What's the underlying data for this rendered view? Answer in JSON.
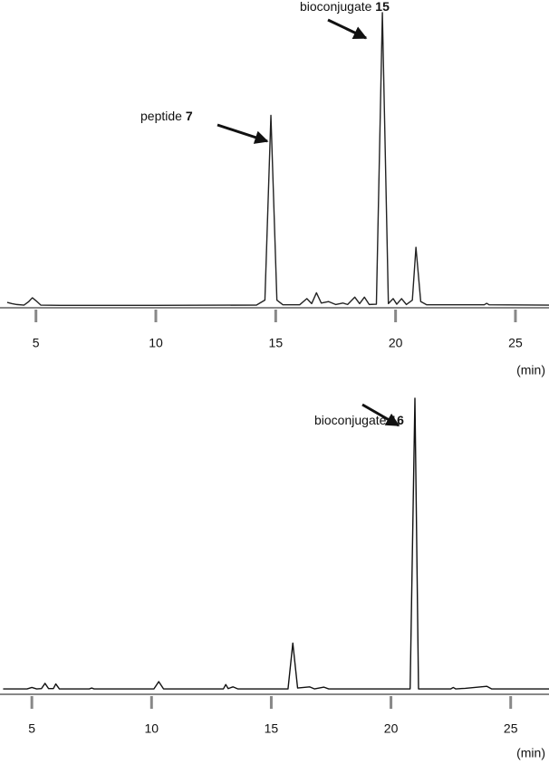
{
  "chart_data": [
    {
      "type": "line",
      "xlabel": "(min)",
      "xlim": [
        3.5,
        26.4
      ],
      "ylim": [
        0,
        100
      ],
      "xticks": [
        5,
        10,
        15,
        20,
        25
      ],
      "x": [
        3.8,
        4.0,
        4.2,
        4.5,
        4.7,
        4.85,
        5.0,
        5.2,
        6,
        10,
        14.2,
        14.55,
        14.8,
        15.05,
        15.3,
        16.0,
        16.3,
        16.5,
        16.7,
        16.9,
        17.2,
        17.5,
        17.8,
        18.0,
        18.3,
        18.5,
        18.7,
        18.9,
        19.2,
        19.45,
        19.7,
        19.9,
        20.05,
        20.25,
        20.45,
        20.7,
        20.85,
        21.05,
        21.3,
        23.7,
        23.8,
        23.9,
        26.4
      ],
      "series": [
        {
          "color": "#222222",
          "values": [
            1.2,
            0.8,
            0.5,
            0.3,
            1.5,
            2.8,
            1.8,
            0.3,
            0.2,
            0.2,
            0.3,
            2,
            65,
            2,
            0.4,
            0.4,
            2.5,
            0.8,
            4.5,
            1,
            1.5,
            0.5,
            1,
            0.5,
            3,
            0.8,
            3,
            0.5,
            0.6,
            100,
            0.8,
            2.5,
            0.6,
            2.5,
            0.5,
            2,
            20,
            1.5,
            0.4,
            0.4,
            0.9,
            0.4,
            0.3
          ]
        }
      ],
      "annotations": [
        {
          "text": "bioconjugate",
          "number": "15"
        },
        {
          "text": "peptide",
          "number": "7"
        }
      ]
    },
    {
      "type": "line",
      "xlabel": "(min)",
      "xlim": [
        3.67,
        26.6
      ],
      "ylim": [
        0,
        100
      ],
      "xticks": [
        5,
        10,
        15,
        20,
        25
      ],
      "x": [
        3.8,
        4.8,
        5.0,
        5.2,
        5.4,
        5.55,
        5.7,
        5.9,
        6.0,
        6.15,
        7.4,
        7.5,
        7.6,
        10.1,
        10.3,
        10.5,
        13.0,
        13.1,
        13.2,
        13.4,
        13.6,
        15.7,
        15.9,
        16.1,
        16.6,
        16.8,
        17.2,
        17.4,
        20.8,
        21.0,
        21.15,
        22.5,
        22.6,
        22.7,
        23.1,
        24.0,
        24.2,
        26.6
      ],
      "series": [
        {
          "color": "#111111",
          "values": [
            0.3,
            0.3,
            0.8,
            0.3,
            0.4,
            2.2,
            0.4,
            0.4,
            2,
            0.3,
            0.3,
            0.6,
            0.3,
            0.3,
            2.8,
            0.3,
            0.3,
            1.8,
            0.4,
            1,
            0.3,
            0.3,
            16,
            0.6,
            1,
            0.3,
            0.9,
            0.3,
            0.3,
            100,
            0.3,
            0.3,
            0.8,
            0.3,
            0.5,
            1.2,
            0.3,
            0.3
          ]
        }
      ],
      "annotations": [
        {
          "text": "bioconjugate",
          "number": "16"
        }
      ]
    }
  ]
}
